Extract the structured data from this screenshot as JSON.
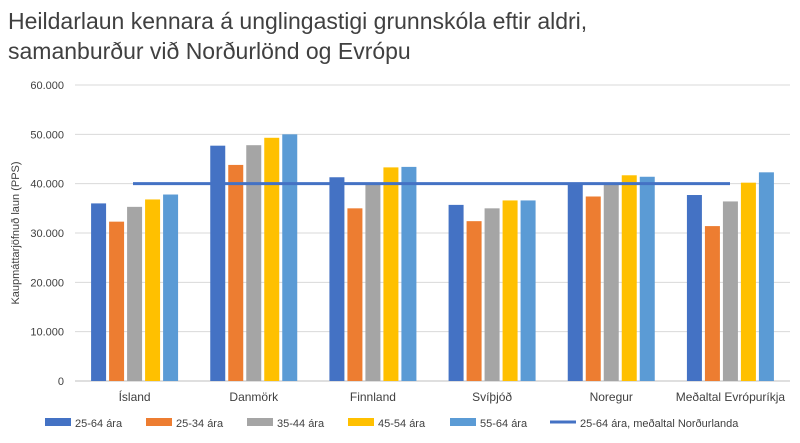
{
  "title_lines": [
    "Heildarlaun kennara á unglingastigi grunnskóla eftir aldri,",
    "samanburður við Norðurlönd og Evrópu"
  ],
  "chart_data": {
    "type": "bar",
    "title": "Heildarlaun kennara á unglingastigi grunnskóla eftir aldri, samanburður við Norðurlönd og Evrópu",
    "xlabel": "",
    "ylabel": "Kaupmáttarjöfnuð laun (PPS)",
    "ylim": [
      0,
      60000
    ],
    "yticks": [
      0,
      10000,
      20000,
      30000,
      40000,
      50000,
      60000
    ],
    "ytick_labels": [
      "0",
      "10.000",
      "20.000",
      "30.000",
      "40.000",
      "50.000",
      "60.000"
    ],
    "grid": true,
    "legend_position": "bottom",
    "categories": [
      "Ísland",
      "Danmörk",
      "Finnland",
      "Svíþjóð",
      "Noregur",
      "Meðaltal Evrópuríkja"
    ],
    "series": [
      {
        "name": "25-64 ára",
        "color": "#4472C4",
        "values": [
          36000,
          47700,
          41300,
          35700,
          39900,
          37700
        ]
      },
      {
        "name": "25-34 ára",
        "color": "#ED7D31",
        "values": [
          32300,
          43800,
          35000,
          32400,
          37400,
          31400
        ]
      },
      {
        "name": "35-44 ára",
        "color": "#A5A5A5",
        "values": [
          35300,
          47800,
          39900,
          35000,
          40000,
          36400
        ]
      },
      {
        "name": "45-54 ára",
        "color": "#FFC000",
        "values": [
          36800,
          49300,
          43300,
          36600,
          41700,
          40200
        ]
      },
      {
        "name": "55-64 ára",
        "color": "#5B9BD5",
        "values": [
          37800,
          50000,
          43400,
          36600,
          41400,
          42300
        ]
      }
    ],
    "reference_line": {
      "name": "25-64 ára, meðaltal Norðurlanda",
      "color": "#4472C4",
      "value": 40000
    }
  }
}
